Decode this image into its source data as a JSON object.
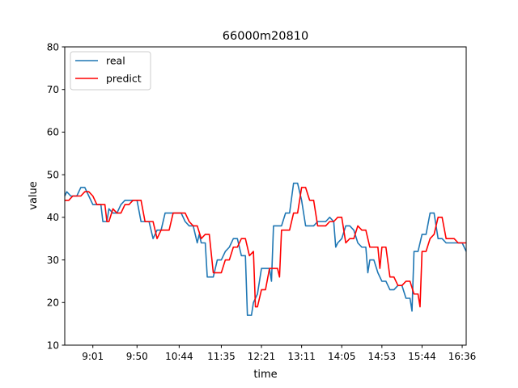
{
  "chart_data": {
    "type": "line",
    "title": "66000m20810",
    "xlabel": "time",
    "ylabel": "value",
    "ylim": [
      10,
      80
    ],
    "yticks": [
      10,
      20,
      30,
      40,
      50,
      60,
      70,
      80
    ],
    "xlim": [
      0,
      100
    ],
    "xticks": [
      {
        "value": 7,
        "label": "9:01"
      },
      {
        "value": 18,
        "label": "9:50"
      },
      {
        "value": 28.5,
        "label": "10:44"
      },
      {
        "value": 39,
        "label": "11:35"
      },
      {
        "value": 49,
        "label": "12:21"
      },
      {
        "value": 59,
        "label": "13:11"
      },
      {
        "value": 69,
        "label": "14:05"
      },
      {
        "value": 79,
        "label": "14:53"
      },
      {
        "value": 89,
        "label": "15:44"
      },
      {
        "value": 99,
        "label": "16:36"
      }
    ],
    "grid": false,
    "legend_position": "top-left",
    "series": [
      {
        "name": "real",
        "color": "#1f77b4",
        "points": [
          [
            0,
            45
          ],
          [
            0.5,
            46
          ],
          [
            1.5,
            45
          ],
          [
            3,
            45
          ],
          [
            4,
            47
          ],
          [
            5,
            47
          ],
          [
            6,
            45
          ],
          [
            7,
            43
          ],
          [
            9,
            43
          ],
          [
            9.5,
            39
          ],
          [
            10.5,
            39
          ],
          [
            11,
            42
          ],
          [
            12,
            41
          ],
          [
            13,
            41
          ],
          [
            14,
            43
          ],
          [
            15,
            44
          ],
          [
            16,
            44
          ],
          [
            17,
            44
          ],
          [
            18,
            44
          ],
          [
            19,
            39
          ],
          [
            20,
            39
          ],
          [
            21,
            39
          ],
          [
            22,
            35
          ],
          [
            22.5,
            36
          ],
          [
            23,
            37
          ],
          [
            24,
            37
          ],
          [
            25,
            41
          ],
          [
            26,
            41
          ],
          [
            27,
            41
          ],
          [
            28,
            41
          ],
          [
            29,
            41
          ],
          [
            30,
            39
          ],
          [
            31,
            38
          ],
          [
            32,
            38
          ],
          [
            33,
            34
          ],
          [
            33.5,
            36
          ],
          [
            34,
            34
          ],
          [
            35,
            34
          ],
          [
            35.5,
            26
          ],
          [
            37,
            26
          ],
          [
            38,
            30
          ],
          [
            39,
            30
          ],
          [
            40,
            32
          ],
          [
            41,
            33
          ],
          [
            42,
            35
          ],
          [
            43,
            35
          ],
          [
            44,
            31
          ],
          [
            45,
            31
          ],
          [
            45.5,
            17
          ],
          [
            46.5,
            17
          ],
          [
            47,
            20
          ],
          [
            48,
            22
          ],
          [
            49,
            28
          ],
          [
            50,
            28
          ],
          [
            51,
            28
          ],
          [
            51.5,
            25
          ],
          [
            52,
            38
          ],
          [
            54,
            38
          ],
          [
            55,
            41
          ],
          [
            56,
            41
          ],
          [
            57,
            48
          ],
          [
            58,
            48
          ],
          [
            59,
            44
          ],
          [
            60,
            38
          ],
          [
            61,
            38
          ],
          [
            62,
            38
          ],
          [
            63,
            39
          ],
          [
            64,
            39
          ],
          [
            65,
            39
          ],
          [
            66,
            40
          ],
          [
            67,
            39
          ],
          [
            67.5,
            33
          ],
          [
            68,
            34
          ],
          [
            69,
            35
          ],
          [
            70,
            38
          ],
          [
            71,
            38
          ],
          [
            72,
            37
          ],
          [
            73,
            34
          ],
          [
            74,
            33
          ],
          [
            75,
            33
          ],
          [
            75.5,
            27
          ],
          [
            76,
            30
          ],
          [
            77,
            30
          ],
          [
            78,
            27
          ],
          [
            79,
            25
          ],
          [
            80,
            25
          ],
          [
            81,
            23
          ],
          [
            82,
            23
          ],
          [
            83,
            24
          ],
          [
            84,
            24
          ],
          [
            85,
            21
          ],
          [
            86,
            21
          ],
          [
            86.5,
            18
          ],
          [
            87,
            32
          ],
          [
            88,
            32
          ],
          [
            89,
            36
          ],
          [
            90,
            36
          ],
          [
            91,
            41
          ],
          [
            92,
            41
          ],
          [
            93,
            35
          ],
          [
            94,
            35
          ],
          [
            95,
            34
          ],
          [
            96,
            34
          ],
          [
            97,
            34
          ],
          [
            98,
            34
          ],
          [
            99,
            34
          ],
          [
            100,
            32
          ]
        ]
      },
      {
        "name": "predict",
        "color": "#ff0000",
        "points": [
          [
            0,
            44
          ],
          [
            1,
            44
          ],
          [
            2,
            45
          ],
          [
            3,
            45
          ],
          [
            4,
            45
          ],
          [
            5,
            46
          ],
          [
            6,
            46
          ],
          [
            7,
            45
          ],
          [
            8,
            43
          ],
          [
            9,
            43
          ],
          [
            10,
            43
          ],
          [
            10.5,
            39
          ],
          [
            11,
            39
          ],
          [
            12,
            42
          ],
          [
            13,
            41
          ],
          [
            14,
            41
          ],
          [
            15,
            43
          ],
          [
            16,
            43
          ],
          [
            17,
            44
          ],
          [
            18,
            44
          ],
          [
            19,
            44
          ],
          [
            20,
            39
          ],
          [
            21,
            39
          ],
          [
            22,
            39
          ],
          [
            23,
            35
          ],
          [
            24,
            37
          ],
          [
            25,
            37
          ],
          [
            26,
            37
          ],
          [
            27,
            41
          ],
          [
            28,
            41
          ],
          [
            29,
            41
          ],
          [
            30,
            41
          ],
          [
            31,
            39
          ],
          [
            32,
            38
          ],
          [
            33,
            38
          ],
          [
            34,
            35
          ],
          [
            35,
            36
          ],
          [
            36,
            36
          ],
          [
            37,
            27
          ],
          [
            38,
            27
          ],
          [
            39,
            27
          ],
          [
            40,
            30
          ],
          [
            41,
            30
          ],
          [
            42,
            33
          ],
          [
            43,
            33
          ],
          [
            44,
            35
          ],
          [
            45,
            35
          ],
          [
            46,
            31
          ],
          [
            47,
            32
          ],
          [
            47.5,
            19
          ],
          [
            48,
            19
          ],
          [
            49,
            23
          ],
          [
            50,
            23
          ],
          [
            51,
            28
          ],
          [
            52,
            28
          ],
          [
            53,
            28
          ],
          [
            53.5,
            26
          ],
          [
            54,
            37
          ],
          [
            56,
            37
          ],
          [
            57,
            41
          ],
          [
            58,
            41
          ],
          [
            59,
            47
          ],
          [
            60,
            47
          ],
          [
            61,
            44
          ],
          [
            62,
            44
          ],
          [
            63,
            38
          ],
          [
            64,
            38
          ],
          [
            65,
            38
          ],
          [
            66,
            39
          ],
          [
            67,
            39
          ],
          [
            68,
            40
          ],
          [
            69,
            40
          ],
          [
            70,
            34
          ],
          [
            71,
            35
          ],
          [
            72,
            35
          ],
          [
            73,
            38
          ],
          [
            74,
            37
          ],
          [
            75,
            37
          ],
          [
            76,
            33
          ],
          [
            77,
            33
          ],
          [
            78,
            33
          ],
          [
            78.5,
            28
          ],
          [
            79,
            33
          ],
          [
            80,
            33
          ],
          [
            81,
            26
          ],
          [
            82,
            26
          ],
          [
            83,
            24
          ],
          [
            84,
            24
          ],
          [
            85,
            25
          ],
          [
            86,
            25
          ],
          [
            87,
            22
          ],
          [
            88,
            22
          ],
          [
            88.5,
            19
          ],
          [
            89,
            32
          ],
          [
            90,
            32
          ],
          [
            91,
            35
          ],
          [
            92,
            36
          ],
          [
            93,
            40
          ],
          [
            94,
            40
          ],
          [
            95,
            35
          ],
          [
            96,
            35
          ],
          [
            97,
            35
          ],
          [
            98,
            34
          ],
          [
            99,
            34
          ],
          [
            100,
            34
          ]
        ]
      }
    ]
  }
}
